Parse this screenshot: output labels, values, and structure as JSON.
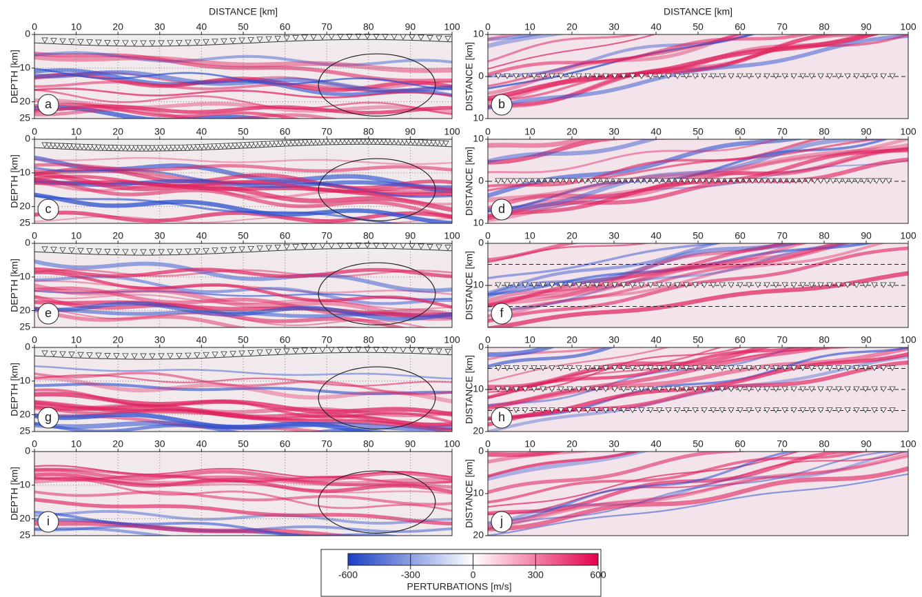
{
  "panels": [
    {
      "label": "a",
      "x_title": "DISTANCE [km]",
      "y_title": "DEPTH [km]",
      "xlim": [
        0,
        100
      ],
      "xticks": [
        0,
        10,
        20,
        30,
        40,
        50,
        60,
        70,
        80,
        90,
        100
      ],
      "ylim": [
        0,
        25
      ],
      "yticks": [
        0,
        10,
        20,
        25
      ]
    },
    {
      "label": "b",
      "x_title": "DISTANCE [km]",
      "y_title": "DISTANCE [km]",
      "xlim": [
        0,
        100
      ],
      "xticks": [
        0,
        10,
        20,
        30,
        40,
        50,
        60,
        70,
        80,
        90,
        100
      ],
      "ylim": [
        -10,
        10
      ],
      "yticks": [
        {
          "value": -10,
          "label": "10"
        },
        0,
        10
      ]
    },
    {
      "label": "c",
      "y_title": "DEPTH [km]",
      "xlim": [
        0,
        100
      ],
      "xticks": [
        0,
        10,
        20,
        30,
        40,
        50,
        60,
        70,
        80,
        90,
        100
      ],
      "ylim": [
        0,
        25
      ],
      "yticks": [
        0,
        10,
        20,
        25
      ]
    },
    {
      "label": "d",
      "y_title": "DISTANCE [km]",
      "xlim": [
        0,
        100
      ],
      "xticks": [
        0,
        10,
        20,
        30,
        40,
        50,
        60,
        70,
        80,
        90,
        100
      ],
      "ylim": [
        -10,
        10
      ],
      "yticks": [
        {
          "value": -10,
          "label": "10"
        },
        0,
        10
      ]
    },
    {
      "label": "e",
      "y_title": "DEPTH [km]",
      "xlim": [
        0,
        100
      ],
      "xticks": [
        0,
        10,
        20,
        30,
        40,
        50,
        60,
        70,
        80,
        90,
        100
      ],
      "ylim": [
        0,
        25
      ],
      "yticks": [
        0,
        10,
        20,
        25
      ]
    },
    {
      "label": "f",
      "y_title": "DISTANCE [km]",
      "xlim": [
        0,
        100
      ],
      "xticks": [
        0,
        10,
        20,
        30,
        40,
        50,
        60,
        70,
        80,
        90,
        100
      ],
      "ylim": [
        0,
        20
      ],
      "yticks": [
        0,
        10
      ]
    },
    {
      "label": "g",
      "y_title": "DEPTH [km]",
      "xlim": [
        0,
        100
      ],
      "xticks": [
        0,
        10,
        20,
        30,
        40,
        50,
        60,
        70,
        80,
        90,
        100
      ],
      "ylim": [
        0,
        25
      ],
      "yticks": [
        0,
        10,
        20,
        25
      ]
    },
    {
      "label": "h",
      "y_title": "DISTANCE [km]",
      "xlim": [
        0,
        100
      ],
      "xticks": [
        0,
        10,
        20,
        30,
        40,
        50,
        60,
        70,
        80,
        90,
        100
      ],
      "ylim": [
        0,
        20
      ],
      "yticks": [
        0,
        10,
        20
      ]
    },
    {
      "label": "i",
      "y_title": "DEPTH [km]",
      "xlim": [
        0,
        100
      ],
      "xticks": [
        0,
        10,
        20,
        30,
        40,
        50,
        60,
        70,
        80,
        90,
        100
      ],
      "ylim": [
        0,
        25
      ],
      "yticks": [
        0,
        10,
        20,
        25
      ]
    },
    {
      "label": "j",
      "y_title": "DISTANCE [km]",
      "xlim": [
        0,
        100
      ],
      "xticks": [
        0,
        10,
        20,
        30,
        40,
        50,
        60,
        70,
        80,
        90,
        100
      ],
      "ylim": [
        0,
        20
      ],
      "yticks": [
        0,
        10,
        20
      ]
    }
  ],
  "colorbar": {
    "title": "PERTURBATIONS [m/s]",
    "lim": [
      -600,
      600
    ],
    "ticks": [
      -600,
      -300,
      0,
      300,
      600
    ],
    "colors": [
      "#1a3fc4",
      "#ffffff",
      "#e4004f"
    ]
  }
}
